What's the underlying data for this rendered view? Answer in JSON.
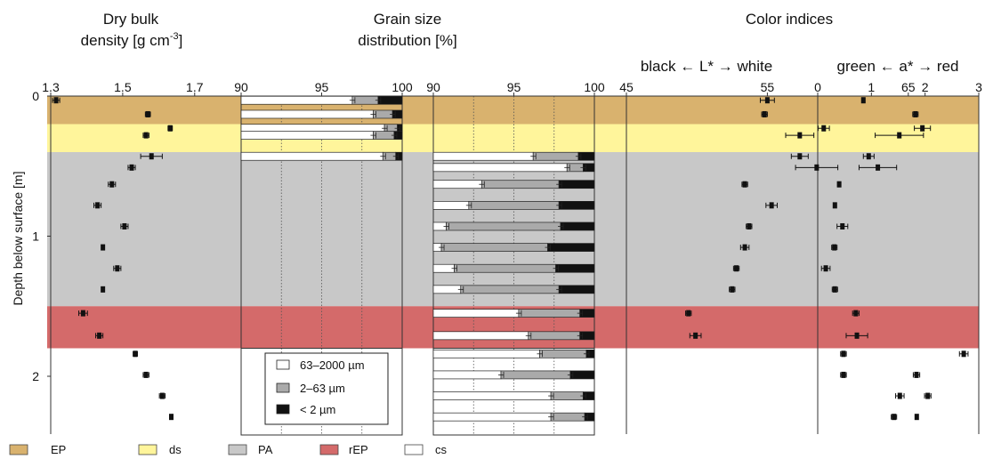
{
  "titles": {
    "density_line1": "Dry bulk",
    "density_line2": "density [g cm",
    "density_sup": "-3",
    "density_close": "]",
    "grain_line1": "Grain size",
    "grain_line2": "distribution [%]",
    "color_main": "Color indices",
    "lstar_label": "black ← L* → white",
    "astar_label": "green ← a* → red"
  },
  "ylabel": "Depth below surface [m]",
  "colors": {
    "EP": "#d9b26e",
    "ds": "#fff59b",
    "PA": "#c8c8c8",
    "rEP": "#d46a6a",
    "cs": "#ffffff",
    "coarse": "#ffffff",
    "medium": "#aaaaaa",
    "fine": "#111111"
  },
  "legend_units": [
    {
      "key": "EP",
      "label": "EP"
    },
    {
      "key": "ds",
      "label": "ds"
    },
    {
      "key": "PA",
      "label": "PA"
    },
    {
      "key": "rEP",
      "label": "rEP"
    },
    {
      "key": "cs",
      "label": "cs"
    }
  ],
  "grain_legend": [
    {
      "key": "coarse",
      "label": "63–2000 µm"
    },
    {
      "key": "medium",
      "label": "2–63 µm"
    },
    {
      "key": "fine",
      "label": "< 2 µm"
    }
  ],
  "chart_data": [
    {
      "type": "scatter",
      "title": "Dry bulk density [g cm-3]",
      "xlim": [
        1.3,
        1.75
      ],
      "xticks": [
        "1.3",
        "1.5",
        "1.7"
      ],
      "ylabel": "Depth below surface [m]",
      "ylim": [
        0,
        2.4
      ],
      "yticks": [
        "0",
        "1",
        "2"
      ],
      "units": [
        {
          "name": "EP",
          "from": 0,
          "to": 0.2
        },
        {
          "name": "ds",
          "from": 0.2,
          "to": 0.4
        },
        {
          "name": "PA",
          "from": 0.4,
          "to": 1.5
        },
        {
          "name": "rEP",
          "from": 1.5,
          "to": 1.8
        },
        {
          "name": "cs",
          "from": 1.8,
          "to": 2.4
        }
      ],
      "points": [
        {
          "depth": 0.03,
          "value": 1.315,
          "err": 0.01
        },
        {
          "depth": 0.13,
          "value": 1.57,
          "err": 0.007
        },
        {
          "depth": 0.23,
          "value": 1.632,
          "err": 0.006
        },
        {
          "depth": 0.28,
          "value": 1.565,
          "err": 0.008
        },
        {
          "depth": 0.43,
          "value": 1.58,
          "err": 0.03
        },
        {
          "depth": 0.51,
          "value": 1.525,
          "err": 0.01
        },
        {
          "depth": 0.63,
          "value": 1.47,
          "err": 0.01
        },
        {
          "depth": 0.78,
          "value": 1.43,
          "err": 0.01
        },
        {
          "depth": 0.93,
          "value": 1.505,
          "err": 0.01
        },
        {
          "depth": 1.08,
          "value": 1.445,
          "err": 0.004
        },
        {
          "depth": 1.23,
          "value": 1.485,
          "err": 0.01
        },
        {
          "depth": 1.38,
          "value": 1.445,
          "err": 0.004
        },
        {
          "depth": 1.55,
          "value": 1.39,
          "err": 0.012
        },
        {
          "depth": 1.71,
          "value": 1.435,
          "err": 0.01
        },
        {
          "depth": 1.84,
          "value": 1.535,
          "err": 0.006
        },
        {
          "depth": 1.99,
          "value": 1.565,
          "err": 0.008
        },
        {
          "depth": 2.14,
          "value": 1.61,
          "err": 0.008
        },
        {
          "depth": 2.29,
          "value": 1.635,
          "err": 0.004
        }
      ]
    },
    {
      "type": "bar",
      "title": "Grain size distribution [%]",
      "stacked": true,
      "orientation": "horizontal",
      "panels": [
        {
          "xlim": [
            90,
            100
          ],
          "xticks": [
            "90",
            "95",
            "100"
          ],
          "grid": [
            92.5,
            95,
            97.5
          ]
        },
        {
          "xlim": [
            90,
            100
          ],
          "xticks": [
            "90",
            "95",
            "100"
          ],
          "grid": [
            92.5,
            95,
            97.5
          ]
        }
      ],
      "series": [
        {
          "name": "63–2000 µm",
          "key": "coarse"
        },
        {
          "name": "2–63 µm",
          "key": "medium"
        },
        {
          "name": "< 2 µm",
          "key": "fine"
        }
      ],
      "samples": [
        {
          "panel": 0,
          "depth": 0.03,
          "coarse": 96.9,
          "medium": 1.6,
          "fine": 1.5
        },
        {
          "panel": 0,
          "depth": 0.13,
          "coarse": 98.2,
          "medium": 1.2,
          "fine": 0.6
        },
        {
          "panel": 0,
          "depth": 0.23,
          "coarse": 98.9,
          "medium": 0.8,
          "fine": 0.3
        },
        {
          "panel": 0,
          "depth": 0.28,
          "coarse": 98.2,
          "medium": 1.3,
          "fine": 0.5
        },
        {
          "panel": 0,
          "depth": 0.43,
          "coarse": 98.8,
          "medium": 0.8,
          "fine": 0.4
        },
        {
          "panel": 1,
          "depth": 0.43,
          "coarse": 96.2,
          "medium": 2.8,
          "fine": 1.0
        },
        {
          "panel": 1,
          "depth": 0.51,
          "coarse": 98.3,
          "medium": 1.0,
          "fine": 0.7
        },
        {
          "panel": 1,
          "depth": 0.63,
          "coarse": 93.0,
          "medium": 4.8,
          "fine": 2.2
        },
        {
          "panel": 1,
          "depth": 0.78,
          "coarse": 92.2,
          "medium": 5.6,
          "fine": 2.2
        },
        {
          "panel": 1,
          "depth": 0.93,
          "coarse": 90.8,
          "medium": 7.1,
          "fine": 2.1
        },
        {
          "panel": 1,
          "depth": 1.08,
          "coarse": 90.5,
          "medium": 6.6,
          "fine": 2.9
        },
        {
          "panel": 1,
          "depth": 1.23,
          "coarse": 91.3,
          "medium": 6.3,
          "fine": 2.4
        },
        {
          "panel": 1,
          "depth": 1.38,
          "coarse": 91.7,
          "medium": 6.1,
          "fine": 2.2
        },
        {
          "panel": 1,
          "depth": 1.55,
          "coarse": 95.3,
          "medium": 3.8,
          "fine": 0.9
        },
        {
          "panel": 1,
          "depth": 1.71,
          "coarse": 95.9,
          "medium": 3.2,
          "fine": 0.9
        },
        {
          "panel": 1,
          "depth": 1.84,
          "coarse": 96.6,
          "medium": 2.9,
          "fine": 0.5
        },
        {
          "panel": 1,
          "depth": 1.99,
          "coarse": 94.2,
          "medium": 4.3,
          "fine": 1.5
        },
        {
          "panel": 1,
          "depth": 2.14,
          "coarse": 97.3,
          "medium": 2.0,
          "fine": 0.7
        },
        {
          "panel": 1,
          "depth": 2.29,
          "coarse": 97.3,
          "medium": 2.1,
          "fine": 0.6
        }
      ]
    },
    {
      "type": "scatter",
      "title": "Color indices",
      "panels": [
        {
          "name": "L*",
          "label": "black ← L* → white",
          "xlim": [
            45,
            70
          ],
          "xticks": [
            "45",
            "55",
            "65"
          ],
          "points": [
            {
              "depth": 0.03,
              "value": 55.0,
              "err": 0.5
            },
            {
              "depth": 0.13,
              "value": 54.8,
              "err": 0.2
            },
            {
              "depth": 0.23,
              "value": 59.0,
              "err": 0.4
            },
            {
              "depth": 0.28,
              "value": 57.3,
              "err": 1.0
            },
            {
              "depth": 0.43,
              "value": 57.3,
              "err": 0.6
            },
            {
              "depth": 0.51,
              "value": 58.5,
              "err": 1.5
            },
            {
              "depth": 0.63,
              "value": 53.4,
              "err": 0.2
            },
            {
              "depth": 0.78,
              "value": 55.3,
              "err": 0.4
            },
            {
              "depth": 0.93,
              "value": 53.7,
              "err": 0.2
            },
            {
              "depth": 1.08,
              "value": 53.4,
              "err": 0.3
            },
            {
              "depth": 1.23,
              "value": 52.8,
              "err": 0.2
            },
            {
              "depth": 1.38,
              "value": 52.5,
              "err": 0.2
            },
            {
              "depth": 1.55,
              "value": 49.4,
              "err": 0.2
            },
            {
              "depth": 1.71,
              "value": 49.9,
              "err": 0.4
            },
            {
              "depth": 1.84,
              "value": 60.4,
              "err": 0.2
            },
            {
              "depth": 1.99,
              "value": 60.4,
              "err": 0.2
            },
            {
              "depth": 2.14,
              "value": 64.4,
              "err": 0.3
            },
            {
              "depth": 2.29,
              "value": 65.6,
              "err": 0.1
            }
          ]
        },
        {
          "name": "a*",
          "label": "green ← a* → red",
          "xlim": [
            0,
            3
          ],
          "xticks": [
            "0",
            "1",
            "2",
            "3"
          ],
          "points": [
            {
              "depth": 0.03,
              "value": 0.85,
              "err": 0.03
            },
            {
              "depth": 0.13,
              "value": 1.82,
              "err": 0.05
            },
            {
              "depth": 0.23,
              "value": 1.95,
              "err": 0.15
            },
            {
              "depth": 0.28,
              "value": 1.52,
              "err": 0.45
            },
            {
              "depth": 0.43,
              "value": 0.95,
              "err": 0.1
            },
            {
              "depth": 0.51,
              "value": 1.12,
              "err": 0.35
            },
            {
              "depth": 0.63,
              "value": 0.4,
              "err": 0.03
            },
            {
              "depth": 0.78,
              "value": 0.32,
              "err": 0.02
            },
            {
              "depth": 0.93,
              "value": 0.46,
              "err": 0.1
            },
            {
              "depth": 1.08,
              "value": 0.31,
              "err": 0.05
            },
            {
              "depth": 1.23,
              "value": 0.15,
              "err": 0.08
            },
            {
              "depth": 1.38,
              "value": 0.32,
              "err": 0.05
            },
            {
              "depth": 1.55,
              "value": 0.71,
              "err": 0.06
            },
            {
              "depth": 1.71,
              "value": 0.73,
              "err": 0.2
            },
            {
              "depth": 1.84,
              "value": 2.72,
              "err": 0.08
            },
            {
              "depth": 1.99,
              "value": 1.84,
              "err": 0.06
            },
            {
              "depth": 2.14,
              "value": 2.05,
              "err": 0.06
            },
            {
              "depth": 2.29,
              "value": 1.42,
              "err": 0.05
            }
          ]
        }
      ]
    }
  ]
}
